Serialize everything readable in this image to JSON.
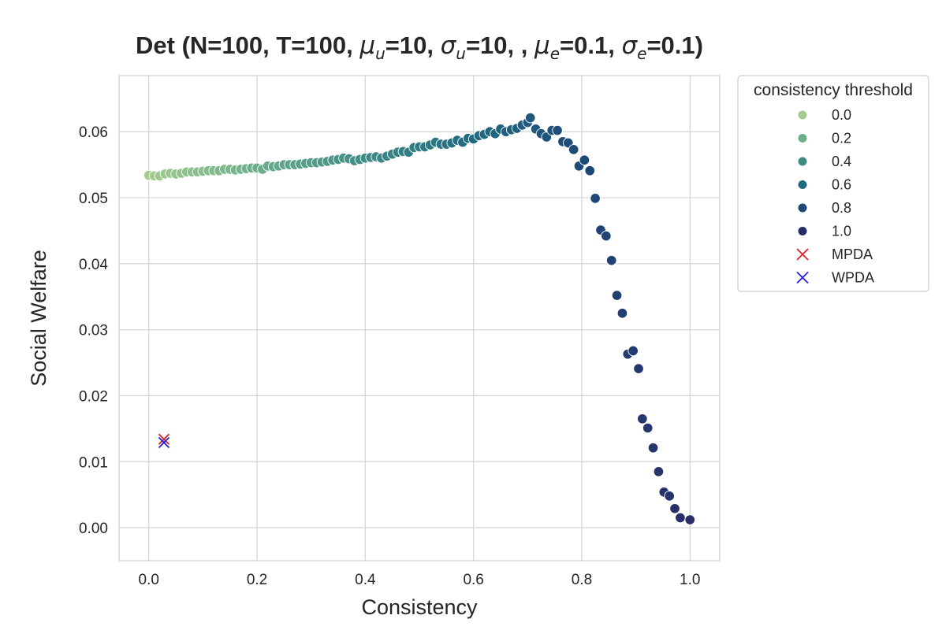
{
  "chart_data": {
    "type": "scatter",
    "title_parts": [
      {
        "text": "Det (N=100, T=100, ",
        "italic": false
      },
      {
        "text": "μ",
        "italic": true
      },
      {
        "text": "u",
        "italic": true,
        "sub": true
      },
      {
        "text": "=10, ",
        "italic": false
      },
      {
        "text": "σ",
        "italic": true
      },
      {
        "text": "u",
        "italic": true,
        "sub": true
      },
      {
        "text": "=10, , ",
        "italic": false
      },
      {
        "text": "μ",
        "italic": true
      },
      {
        "text": "e",
        "italic": true,
        "sub": true
      },
      {
        "text": "=0.1, ",
        "italic": false
      },
      {
        "text": "σ",
        "italic": true
      },
      {
        "text": "e",
        "italic": true,
        "sub": true
      },
      {
        "text": "=0.1)",
        "italic": false
      }
    ],
    "xlabel": "Consistency",
    "ylabel": "Social Welfare",
    "xlim": [
      -0.055,
      1.055
    ],
    "ylim": [
      -0.005,
      0.0685
    ],
    "xticks": [
      "0.0",
      "0.2",
      "0.4",
      "0.6",
      "0.8",
      "1.0"
    ],
    "yticks": [
      "0.00",
      "0.01",
      "0.02",
      "0.03",
      "0.04",
      "0.05",
      "0.06"
    ],
    "grid": true,
    "hue_title": "consistency threshold",
    "legend_placement": "outside-right",
    "legend": [
      {
        "label": "0.0",
        "marker": "dot",
        "color": "#a3cc8d"
      },
      {
        "label": "0.2",
        "marker": "dot",
        "color": "#6cae8b"
      },
      {
        "label": "0.4",
        "marker": "dot",
        "color": "#3f8c86"
      },
      {
        "label": "0.6",
        "marker": "dot",
        "color": "#226a80"
      },
      {
        "label": "0.8",
        "marker": "dot",
        "color": "#1e4a78"
      },
      {
        "label": "1.0",
        "marker": "dot",
        "color": "#282d67"
      },
      {
        "label": "MPDA",
        "marker": "x",
        "color": "#e02020"
      },
      {
        "label": "WPDA",
        "marker": "x",
        "color": "#1f1fe6"
      }
    ],
    "palette": {
      "stops": [
        "#a3cc8d",
        "#6cae8b",
        "#3f8c86",
        "#226a80",
        "#1e4a78",
        "#282d67"
      ]
    },
    "points": [
      {
        "x": 0.0,
        "y": 0.0534
      },
      {
        "x": 0.01,
        "y": 0.0533
      },
      {
        "x": 0.02,
        "y": 0.0533
      },
      {
        "x": 0.03,
        "y": 0.0536
      },
      {
        "x": 0.04,
        "y": 0.0537
      },
      {
        "x": 0.05,
        "y": 0.0536
      },
      {
        "x": 0.06,
        "y": 0.0537
      },
      {
        "x": 0.07,
        "y": 0.0539
      },
      {
        "x": 0.08,
        "y": 0.0539
      },
      {
        "x": 0.09,
        "y": 0.0539
      },
      {
        "x": 0.1,
        "y": 0.054
      },
      {
        "x": 0.11,
        "y": 0.0541
      },
      {
        "x": 0.12,
        "y": 0.0541
      },
      {
        "x": 0.13,
        "y": 0.0541
      },
      {
        "x": 0.14,
        "y": 0.0543
      },
      {
        "x": 0.15,
        "y": 0.0543
      },
      {
        "x": 0.16,
        "y": 0.0542
      },
      {
        "x": 0.17,
        "y": 0.0543
      },
      {
        "x": 0.18,
        "y": 0.0544
      },
      {
        "x": 0.19,
        "y": 0.0545
      },
      {
        "x": 0.2,
        "y": 0.0545
      },
      {
        "x": 0.21,
        "y": 0.0543
      },
      {
        "x": 0.22,
        "y": 0.0548
      },
      {
        "x": 0.23,
        "y": 0.0547
      },
      {
        "x": 0.24,
        "y": 0.0548
      },
      {
        "x": 0.25,
        "y": 0.055
      },
      {
        "x": 0.26,
        "y": 0.055
      },
      {
        "x": 0.27,
        "y": 0.055
      },
      {
        "x": 0.28,
        "y": 0.0551
      },
      {
        "x": 0.29,
        "y": 0.0552
      },
      {
        "x": 0.3,
        "y": 0.0553
      },
      {
        "x": 0.31,
        "y": 0.0553
      },
      {
        "x": 0.32,
        "y": 0.0554
      },
      {
        "x": 0.33,
        "y": 0.0555
      },
      {
        "x": 0.34,
        "y": 0.0557
      },
      {
        "x": 0.35,
        "y": 0.0558
      },
      {
        "x": 0.36,
        "y": 0.056
      },
      {
        "x": 0.37,
        "y": 0.0559
      },
      {
        "x": 0.38,
        "y": 0.0556
      },
      {
        "x": 0.39,
        "y": 0.0558
      },
      {
        "x": 0.4,
        "y": 0.056
      },
      {
        "x": 0.41,
        "y": 0.0561
      },
      {
        "x": 0.42,
        "y": 0.0562
      },
      {
        "x": 0.43,
        "y": 0.056
      },
      {
        "x": 0.44,
        "y": 0.0563
      },
      {
        "x": 0.45,
        "y": 0.0566
      },
      {
        "x": 0.46,
        "y": 0.0569
      },
      {
        "x": 0.47,
        "y": 0.057
      },
      {
        "x": 0.48,
        "y": 0.0569
      },
      {
        "x": 0.49,
        "y": 0.0576
      },
      {
        "x": 0.5,
        "y": 0.0577
      },
      {
        "x": 0.51,
        "y": 0.0577
      },
      {
        "x": 0.52,
        "y": 0.058
      },
      {
        "x": 0.53,
        "y": 0.0584
      },
      {
        "x": 0.54,
        "y": 0.0581
      },
      {
        "x": 0.55,
        "y": 0.0581
      },
      {
        "x": 0.56,
        "y": 0.0583
      },
      {
        "x": 0.57,
        "y": 0.0587
      },
      {
        "x": 0.58,
        "y": 0.0584
      },
      {
        "x": 0.59,
        "y": 0.059
      },
      {
        "x": 0.6,
        "y": 0.0589
      },
      {
        "x": 0.61,
        "y": 0.0594
      },
      {
        "x": 0.62,
        "y": 0.0596
      },
      {
        "x": 0.63,
        "y": 0.06
      },
      {
        "x": 0.64,
        "y": 0.0597
      },
      {
        "x": 0.65,
        "y": 0.0604
      },
      {
        "x": 0.66,
        "y": 0.06
      },
      {
        "x": 0.67,
        "y": 0.0603
      },
      {
        "x": 0.68,
        "y": 0.0605
      },
      {
        "x": 0.69,
        "y": 0.061
      },
      {
        "x": 0.7,
        "y": 0.0614
      },
      {
        "x": 0.705,
        "y": 0.0621
      },
      {
        "x": 0.715,
        "y": 0.0604
      },
      {
        "x": 0.725,
        "y": 0.0597
      },
      {
        "x": 0.735,
        "y": 0.0592
      },
      {
        "x": 0.745,
        "y": 0.0602
      },
      {
        "x": 0.755,
        "y": 0.0602
      },
      {
        "x": 0.765,
        "y": 0.0585
      },
      {
        "x": 0.775,
        "y": 0.0583
      },
      {
        "x": 0.785,
        "y": 0.0573
      },
      {
        "x": 0.795,
        "y": 0.0548
      },
      {
        "x": 0.805,
        "y": 0.0557
      },
      {
        "x": 0.815,
        "y": 0.0541
      },
      {
        "x": 0.825,
        "y": 0.0499
      },
      {
        "x": 0.835,
        "y": 0.0451
      },
      {
        "x": 0.845,
        "y": 0.0442
      },
      {
        "x": 0.855,
        "y": 0.0405
      },
      {
        "x": 0.865,
        "y": 0.0352
      },
      {
        "x": 0.875,
        "y": 0.0325
      },
      {
        "x": 0.885,
        "y": 0.0263
      },
      {
        "x": 0.895,
        "y": 0.0268
      },
      {
        "x": 0.905,
        "y": 0.0241
      },
      {
        "x": 0.912,
        "y": 0.0165
      },
      {
        "x": 0.922,
        "y": 0.0151
      },
      {
        "x": 0.932,
        "y": 0.0121
      },
      {
        "x": 0.942,
        "y": 0.0085
      },
      {
        "x": 0.952,
        "y": 0.0054
      },
      {
        "x": 0.962,
        "y": 0.0048
      },
      {
        "x": 0.972,
        "y": 0.0029
      },
      {
        "x": 0.982,
        "y": 0.0015
      },
      {
        "x": 1.0,
        "y": 0.0012
      }
    ],
    "reference_points": [
      {
        "name": "MPDA",
        "x": 0.028,
        "y": 0.0134,
        "color": "#e02020"
      },
      {
        "name": "WPDA",
        "x": 0.028,
        "y": 0.0129,
        "color": "#1f1fe6"
      }
    ]
  }
}
